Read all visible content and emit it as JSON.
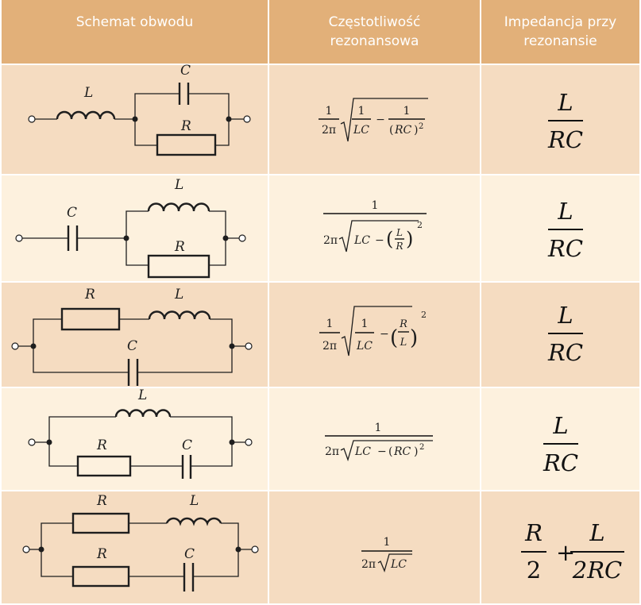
{
  "headers": [
    {
      "lines": [
        "Schemat obwodu"
      ]
    },
    {
      "lines": [
        "Częstotliwość",
        "rezonansowa"
      ]
    },
    {
      "lines": [
        "Impedancja przy",
        "rezonansie"
      ]
    }
  ],
  "components": {
    "inductor": "L",
    "capacitor": "C",
    "resistor": "R"
  },
  "formula_parts": {
    "one": "1",
    "two_pi": "2π",
    "LC": "LC",
    "RC": "RC",
    "L": "L",
    "R": "R",
    "two": "2",
    "minus": "−",
    "plus": "+",
    "exp": "2",
    "lparen": "(",
    "rparen": ")",
    "twoRC": "2RC"
  },
  "impedance": [
    {
      "numerator": "L",
      "denominator": "RC"
    },
    {
      "numerator": "L",
      "denominator": "RC"
    },
    {
      "numerator": "L",
      "denominator": "RC"
    },
    {
      "numerator": "L",
      "denominator": "RC"
    },
    {
      "terms": [
        {
          "numerator": "R",
          "denominator": "2"
        },
        {
          "numerator": "L",
          "denominator": "2RC"
        }
      ]
    }
  ]
}
